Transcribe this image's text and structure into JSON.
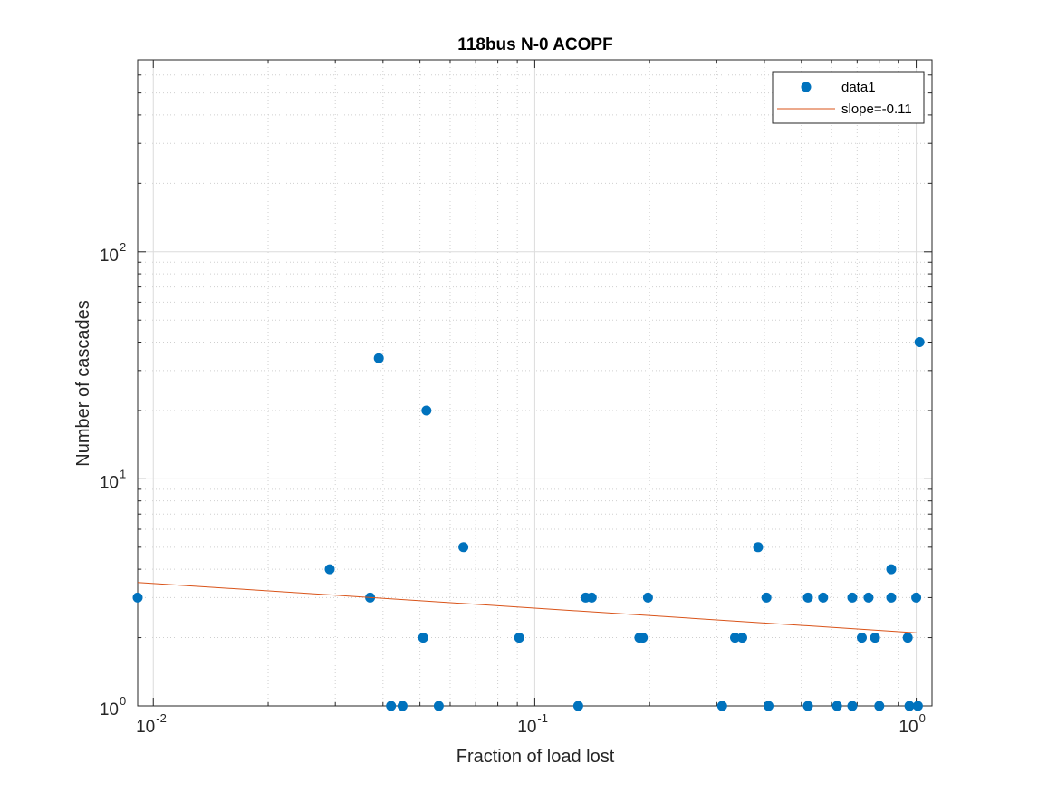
{
  "chart_data": {
    "type": "scatter",
    "title": "118bus N-0 ACOPF",
    "xlabel": "Fraction of load lost",
    "ylabel": "Number of cascades",
    "xscale": "log",
    "yscale": "log",
    "xlim": [
      0.0091,
      1.1
    ],
    "ylim": [
      1,
      700
    ],
    "grid": "on (major and minor)",
    "legend_position": "top-right",
    "x_ticks": [
      {
        "value": 0.01,
        "base": "10",
        "exp": "-2"
      },
      {
        "value": 0.1,
        "base": "10",
        "exp": "-1"
      },
      {
        "value": 1,
        "base": "10",
        "exp": "0"
      }
    ],
    "y_ticks": [
      {
        "value": 1,
        "base": "10",
        "exp": "0"
      },
      {
        "value": 10,
        "base": "10",
        "exp": "1"
      },
      {
        "value": 100,
        "base": "10",
        "exp": "2"
      }
    ],
    "series": [
      {
        "name": "data1",
        "kind": "markers",
        "color": "#0072BD",
        "points": [
          [
            0.0091,
            3
          ],
          [
            0.029,
            4
          ],
          [
            0.037,
            3
          ],
          [
            0.039,
            34
          ],
          [
            0.042,
            1
          ],
          [
            0.045,
            1
          ],
          [
            0.051,
            2
          ],
          [
            0.052,
            20
          ],
          [
            0.056,
            1
          ],
          [
            0.065,
            5
          ],
          [
            0.091,
            2
          ],
          [
            0.13,
            1
          ],
          [
            0.136,
            3
          ],
          [
            0.141,
            3
          ],
          [
            0.188,
            2
          ],
          [
            0.192,
            2
          ],
          [
            0.198,
            3
          ],
          [
            0.31,
            1
          ],
          [
            0.335,
            2
          ],
          [
            0.35,
            2
          ],
          [
            0.385,
            5
          ],
          [
            0.405,
            3
          ],
          [
            0.41,
            1
          ],
          [
            0.52,
            3
          ],
          [
            0.52,
            1
          ],
          [
            0.57,
            3
          ],
          [
            0.62,
            1
          ],
          [
            0.68,
            3
          ],
          [
            0.68,
            1
          ],
          [
            0.72,
            2
          ],
          [
            0.75,
            3
          ],
          [
            0.78,
            2
          ],
          [
            0.8,
            1
          ],
          [
            0.86,
            4
          ],
          [
            0.86,
            3
          ],
          [
            0.95,
            2
          ],
          [
            0.96,
            1
          ],
          [
            1.0,
            3
          ],
          [
            1.01,
            1
          ],
          [
            1.02,
            40
          ]
        ]
      },
      {
        "name": "slope=-0.11",
        "kind": "line",
        "color": "#D95319",
        "points": [
          [
            0.0091,
            3.5
          ],
          [
            1.0,
            2.1
          ]
        ]
      }
    ]
  }
}
